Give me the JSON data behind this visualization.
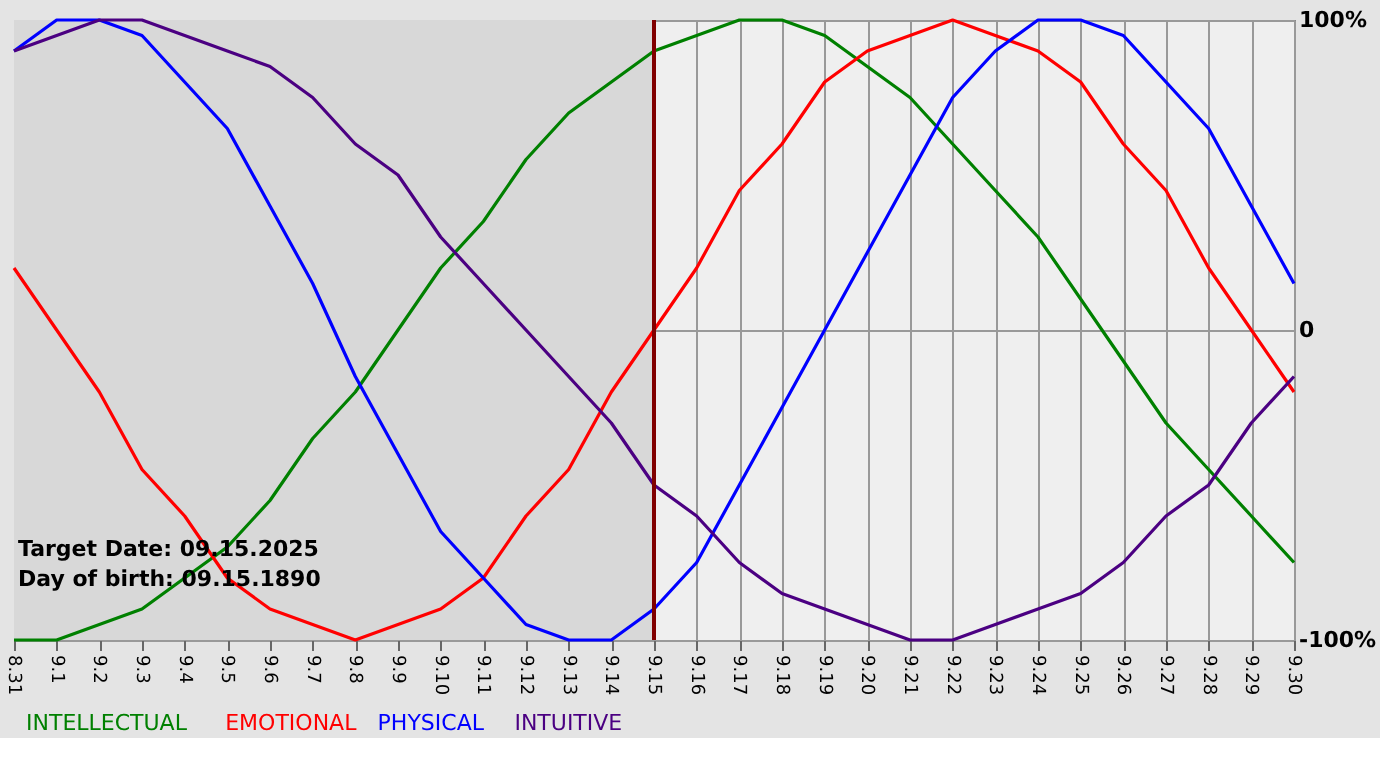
{
  "chart_data": {
    "type": "line",
    "categories": [
      "8.31",
      "9.1",
      "9.2",
      "9.3",
      "9.4",
      "9.5",
      "9.6",
      "9.7",
      "9.8",
      "9.9",
      "9.10",
      "9.11",
      "9.12",
      "9.13",
      "9.14",
      "9.15",
      "9.16",
      "9.17",
      "9.18",
      "9.19",
      "9.20",
      "9.21",
      "9.22",
      "9.23",
      "9.24",
      "9.25",
      "9.26",
      "9.27",
      "9.28",
      "9.29",
      "9.30"
    ],
    "series": [
      {
        "name": "INTELLECTUAL",
        "color": "#008000",
        "values": [
          -100,
          -100,
          -95,
          -90,
          -80,
          -70,
          -55,
          -35,
          -20,
          0,
          20,
          35,
          55,
          70,
          80,
          90,
          95,
          100,
          100,
          95,
          85,
          75,
          60,
          45,
          30,
          10,
          -10,
          -30,
          -45,
          -60,
          -75
        ]
      },
      {
        "name": "EMOTIONAL",
        "color": "#ff0000",
        "values": [
          20,
          0,
          -20,
          -45,
          -60,
          -80,
          -90,
          -95,
          -100,
          -95,
          -90,
          -80,
          -60,
          -45,
          -20,
          0,
          20,
          45,
          60,
          80,
          90,
          95,
          100,
          95,
          90,
          80,
          60,
          45,
          20,
          0,
          -20
        ]
      },
      {
        "name": "PHYSICAL",
        "color": "#0000ff",
        "values": [
          90,
          100,
          100,
          95,
          80,
          65,
          40,
          15,
          -15,
          -40,
          -65,
          -80,
          -95,
          -100,
          -100,
          -90,
          -75,
          -50,
          -25,
          0,
          25,
          50,
          75,
          90,
          100,
          100,
          95,
          80,
          65,
          40,
          15
        ]
      },
      {
        "name": "INTUITIVE",
        "color": "#4b0082",
        "values": [
          90,
          95,
          100,
          100,
          95,
          90,
          85,
          75,
          60,
          50,
          30,
          15,
          0,
          -15,
          -30,
          -50,
          -60,
          -75,
          -85,
          -90,
          -95,
          -100,
          -100,
          -95,
          -90,
          -85,
          -75,
          -60,
          -50,
          -30,
          -15
        ]
      }
    ],
    "ylim": [
      -100,
      100
    ],
    "yticks": [
      {
        "value": -100,
        "label": "-100%"
      },
      0,
      {
        "value": 100,
        "label": "100%"
      }
    ],
    "grid": true,
    "legend": "bottom",
    "ref_lines": [
      {
        "axis": "x",
        "value": "9.15",
        "color": "#800000"
      }
    ],
    "bands": [
      {
        "axis": "x",
        "from": "8.31",
        "to": "9.15",
        "color": "#d8d8d8"
      }
    ],
    "annotations": [
      "Target Date: 09.15.2025",
      "Day of birth: 09.15.1890"
    ]
  }
}
